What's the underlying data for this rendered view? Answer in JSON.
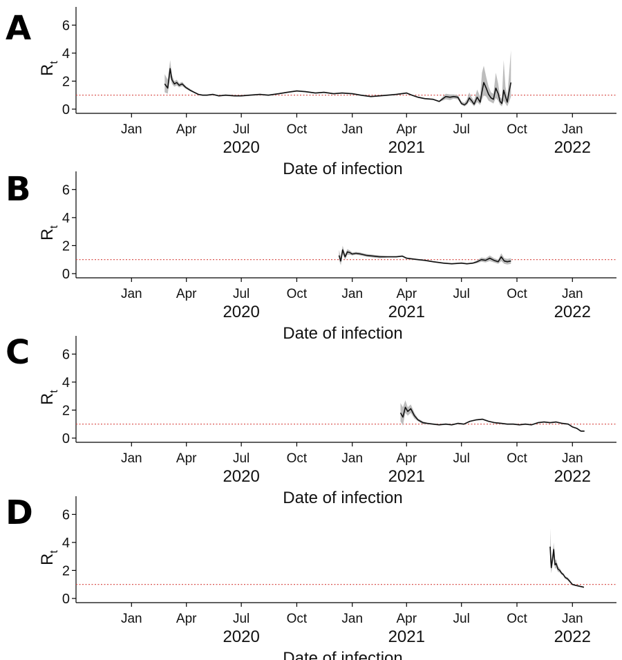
{
  "figure": {
    "x_axis": {
      "title": "Date of infection",
      "months": [
        {
          "label": "Jan",
          "date": "2020-01-01"
        },
        {
          "label": "Apr",
          "date": "2020-04-01"
        },
        {
          "label": "Jul",
          "date": "2020-07-01"
        },
        {
          "label": "Oct",
          "date": "2020-10-01"
        },
        {
          "label": "Jan",
          "date": "2021-01-01"
        },
        {
          "label": "Apr",
          "date": "2021-04-01"
        },
        {
          "label": "Jul",
          "date": "2021-07-01"
        },
        {
          "label": "Oct",
          "date": "2021-10-01"
        },
        {
          "label": "Jan",
          "date": "2022-01-01"
        }
      ],
      "years": [
        {
          "label": "2020",
          "date": "2020-07-01"
        },
        {
          "label": "2021",
          "date": "2021-04-01"
        },
        {
          "label": "2022",
          "date": "2022-01-01"
        }
      ],
      "range": [
        "2019-10-01",
        "2022-03-15"
      ]
    },
    "y_axis": {
      "title_main": "R",
      "title_sub": "t",
      "ticks": [
        0,
        2,
        4,
        6
      ],
      "range": [
        -0.3,
        7.3
      ]
    },
    "reference_line": {
      "value": 1,
      "color": "#d9534f"
    },
    "line_color": "#111111",
    "band_color": "#bdbdbd"
  },
  "chart_data": [
    {
      "type": "line",
      "panel": "A",
      "xlabel": "Date of infection",
      "ylabel": "Rt",
      "ylim": [
        0,
        7
      ],
      "reference_y": 1,
      "series": [
        {
          "x": [
            "2020-02-25",
            "2020-03-01",
            "2020-03-05",
            "2020-03-08",
            "2020-03-12",
            "2020-03-16",
            "2020-03-20",
            "2020-03-25",
            "2020-03-31",
            "2020-04-07",
            "2020-04-14",
            "2020-04-21",
            "2020-04-28",
            "2020-05-05",
            "2020-05-15",
            "2020-05-25",
            "2020-06-05",
            "2020-06-20",
            "2020-07-01",
            "2020-07-15",
            "2020-08-01",
            "2020-08-15",
            "2020-09-01",
            "2020-09-15",
            "2020-10-01",
            "2020-10-15",
            "2020-11-01",
            "2020-11-15",
            "2020-12-01",
            "2020-12-15",
            "2021-01-01",
            "2021-01-15",
            "2021-02-01",
            "2021-02-15",
            "2021-03-01",
            "2021-03-15",
            "2021-04-01",
            "2021-04-10",
            "2021-04-20",
            "2021-05-01",
            "2021-05-15",
            "2021-05-25",
            "2021-06-05",
            "2021-06-12",
            "2021-06-18",
            "2021-06-25",
            "2021-07-01",
            "2021-07-06",
            "2021-07-10",
            "2021-07-14",
            "2021-07-18",
            "2021-07-22",
            "2021-07-27",
            "2021-08-01",
            "2021-08-04",
            "2021-08-07",
            "2021-08-11",
            "2021-08-15",
            "2021-08-19",
            "2021-08-23",
            "2021-08-27",
            "2021-08-31",
            "2021-09-03",
            "2021-09-06",
            "2021-09-09",
            "2021-09-12",
            "2021-09-15",
            "2021-09-18",
            "2021-09-21"
          ],
          "y": [
            1.8,
            1.5,
            2.9,
            2.1,
            1.8,
            1.9,
            1.7,
            1.8,
            1.55,
            1.35,
            1.2,
            1.05,
            1.0,
            1.0,
            1.05,
            0.95,
            1.0,
            0.95,
            0.95,
            1.0,
            1.05,
            1.0,
            1.1,
            1.2,
            1.3,
            1.25,
            1.15,
            1.2,
            1.1,
            1.15,
            1.1,
            1.0,
            0.9,
            0.95,
            1.0,
            1.05,
            1.15,
            1.0,
            0.85,
            0.75,
            0.7,
            0.55,
            0.9,
            0.85,
            0.9,
            0.85,
            0.4,
            0.3,
            0.45,
            0.8,
            0.6,
            0.35,
            0.85,
            0.5,
            1.25,
            1.9,
            1.5,
            1.05,
            0.8,
            0.7,
            1.5,
            1.1,
            0.55,
            0.4,
            1.35,
            0.9,
            0.5,
            1.25,
            1.9
          ],
          "lower": [
            1.2,
            1.1,
            2.3,
            1.8,
            1.6,
            1.7,
            1.55,
            1.65,
            1.45,
            1.3,
            1.15,
            1.0,
            0.95,
            0.95,
            1.0,
            0.9,
            0.95,
            0.9,
            0.9,
            0.95,
            1.0,
            0.95,
            1.05,
            1.15,
            1.25,
            1.2,
            1.1,
            1.15,
            1.05,
            1.1,
            1.05,
            0.95,
            0.85,
            0.9,
            0.95,
            1.0,
            1.1,
            0.95,
            0.8,
            0.7,
            0.65,
            0.5,
            0.7,
            0.65,
            0.75,
            0.7,
            0.3,
            0.2,
            0.3,
            0.55,
            0.4,
            0.2,
            0.5,
            0.3,
            0.7,
            1.0,
            0.9,
            0.6,
            0.5,
            0.4,
            0.8,
            0.6,
            0.3,
            0.2,
            0.6,
            0.4,
            0.2,
            0.5,
            0.9
          ],
          "upper": [
            2.5,
            2.1,
            3.5,
            2.4,
            2.0,
            2.1,
            1.85,
            1.95,
            1.65,
            1.45,
            1.25,
            1.1,
            1.05,
            1.05,
            1.1,
            1.0,
            1.05,
            1.0,
            1.0,
            1.05,
            1.1,
            1.05,
            1.15,
            1.25,
            1.35,
            1.3,
            1.2,
            1.25,
            1.15,
            1.2,
            1.15,
            1.05,
            0.95,
            1.0,
            1.05,
            1.1,
            1.2,
            1.05,
            0.9,
            0.8,
            0.75,
            0.6,
            1.1,
            1.05,
            1.05,
            1.0,
            0.55,
            0.45,
            0.7,
            1.2,
            0.85,
            0.6,
            1.4,
            0.9,
            2.6,
            3.1,
            2.3,
            1.6,
            1.2,
            1.1,
            2.6,
            1.8,
            0.9,
            0.7,
            3.5,
            1.6,
            0.9,
            2.5,
            4.2
          ]
        }
      ]
    },
    {
      "type": "line",
      "panel": "B",
      "xlabel": "Date of infection",
      "ylabel": "Rt",
      "ylim": [
        0,
        7
      ],
      "reference_y": 1,
      "series": [
        {
          "x": [
            "2020-12-10",
            "2020-12-13",
            "2020-12-16",
            "2020-12-20",
            "2020-12-24",
            "2020-12-28",
            "2021-01-01",
            "2021-01-07",
            "2021-01-15",
            "2021-01-25",
            "2021-02-05",
            "2021-02-15",
            "2021-03-01",
            "2021-03-15",
            "2021-03-25",
            "2021-04-01",
            "2021-04-10",
            "2021-04-20",
            "2021-05-01",
            "2021-05-15",
            "2021-06-01",
            "2021-06-15",
            "2021-07-01",
            "2021-07-10",
            "2021-07-20",
            "2021-07-27",
            "2021-08-03",
            "2021-08-10",
            "2021-08-17",
            "2021-08-24",
            "2021-08-31",
            "2021-09-05",
            "2021-09-10",
            "2021-09-15",
            "2021-09-21"
          ],
          "y": [
            1.3,
            0.9,
            1.7,
            1.2,
            1.55,
            1.5,
            1.4,
            1.45,
            1.4,
            1.3,
            1.25,
            1.2,
            1.2,
            1.2,
            1.25,
            1.1,
            1.05,
            1.0,
            0.95,
            0.85,
            0.75,
            0.7,
            0.75,
            0.7,
            0.75,
            0.85,
            1.0,
            0.95,
            1.1,
            0.95,
            0.85,
            1.2,
            0.9,
            0.85,
            0.9
          ],
          "lower": [
            1.0,
            0.6,
            1.4,
            1.0,
            1.35,
            1.35,
            1.3,
            1.35,
            1.3,
            1.2,
            1.15,
            1.1,
            1.15,
            1.15,
            1.2,
            1.05,
            1.0,
            0.95,
            0.9,
            0.8,
            0.7,
            0.65,
            0.7,
            0.65,
            0.7,
            0.75,
            0.85,
            0.8,
            0.9,
            0.8,
            0.7,
            0.9,
            0.7,
            0.65,
            0.7
          ],
          "upper": [
            1.7,
            1.2,
            2.0,
            1.4,
            1.75,
            1.65,
            1.5,
            1.55,
            1.5,
            1.4,
            1.35,
            1.3,
            1.25,
            1.25,
            1.3,
            1.15,
            1.1,
            1.05,
            1.0,
            0.9,
            0.8,
            0.75,
            0.8,
            0.75,
            0.8,
            0.95,
            1.15,
            1.1,
            1.3,
            1.1,
            1.0,
            1.45,
            1.1,
            1.05,
            1.1
          ]
        }
      ]
    },
    {
      "type": "line",
      "panel": "C",
      "xlabel": "Date of infection",
      "ylabel": "Rt",
      "ylim": [
        0,
        7
      ],
      "reference_y": 1,
      "series": [
        {
          "x": [
            "2021-03-22",
            "2021-03-26",
            "2021-03-30",
            "2021-04-03",
            "2021-04-08",
            "2021-04-14",
            "2021-04-20",
            "2021-04-28",
            "2021-05-05",
            "2021-05-15",
            "2021-05-25",
            "2021-06-05",
            "2021-06-15",
            "2021-06-25",
            "2021-07-05",
            "2021-07-15",
            "2021-07-25",
            "2021-08-05",
            "2021-08-15",
            "2021-08-25",
            "2021-09-05",
            "2021-09-15",
            "2021-09-25",
            "2021-10-05",
            "2021-10-15",
            "2021-10-25",
            "2021-11-05",
            "2021-11-15",
            "2021-11-25",
            "2021-12-05",
            "2021-12-15",
            "2021-12-25",
            "2022-01-01",
            "2022-01-08",
            "2022-01-15",
            "2022-01-21"
          ],
          "y": [
            1.8,
            1.5,
            2.2,
            1.9,
            2.1,
            1.6,
            1.3,
            1.1,
            1.05,
            1.0,
            0.95,
            1.0,
            0.95,
            1.05,
            1.0,
            1.2,
            1.3,
            1.35,
            1.2,
            1.1,
            1.05,
            1.0,
            1.0,
            0.95,
            1.0,
            0.95,
            1.1,
            1.15,
            1.1,
            1.15,
            1.05,
            1.0,
            0.8,
            0.7,
            0.5,
            0.5
          ],
          "lower": [
            1.2,
            0.9,
            1.8,
            1.6,
            1.8,
            1.4,
            1.2,
            1.0,
            1.0,
            0.95,
            0.9,
            0.95,
            0.9,
            1.0,
            0.95,
            1.15,
            1.25,
            1.3,
            1.15,
            1.05,
            1.0,
            0.95,
            0.95,
            0.9,
            0.95,
            0.9,
            1.05,
            1.1,
            1.05,
            1.1,
            1.0,
            0.95,
            0.75,
            0.65,
            0.45,
            0.45
          ],
          "upper": [
            2.5,
            2.2,
            2.7,
            2.2,
            2.4,
            1.8,
            1.4,
            1.2,
            1.1,
            1.05,
            1.0,
            1.05,
            1.0,
            1.1,
            1.05,
            1.25,
            1.35,
            1.4,
            1.25,
            1.15,
            1.1,
            1.05,
            1.05,
            1.0,
            1.05,
            1.0,
            1.15,
            1.2,
            1.15,
            1.2,
            1.1,
            1.05,
            0.85,
            0.75,
            0.55,
            0.55
          ]
        }
      ]
    },
    {
      "type": "line",
      "panel": "D",
      "xlabel": "Date of infection",
      "ylabel": "Rt",
      "ylim": [
        0,
        7
      ],
      "reference_y": 1,
      "series": [
        {
          "x": [
            "2021-11-25",
            "2021-11-27",
            "2021-11-29",
            "2021-12-01",
            "2021-12-03",
            "2021-12-05",
            "2021-12-08",
            "2021-12-11",
            "2021-12-14",
            "2021-12-17",
            "2021-12-20",
            "2021-12-24",
            "2021-12-28",
            "2022-01-01",
            "2022-01-05",
            "2022-01-10",
            "2022-01-15",
            "2022-01-20"
          ],
          "y": [
            3.7,
            2.2,
            2.8,
            3.5,
            2.4,
            2.5,
            2.1,
            2.0,
            1.8,
            1.7,
            1.5,
            1.4,
            1.2,
            1.0,
            0.95,
            0.9,
            0.85,
            0.8
          ],
          "lower": [
            2.6,
            1.8,
            2.4,
            3.0,
            2.1,
            2.2,
            1.9,
            1.85,
            1.7,
            1.6,
            1.4,
            1.3,
            1.1,
            0.95,
            0.9,
            0.85,
            0.8,
            0.75
          ],
          "upper": [
            5.0,
            2.7,
            3.2,
            4.0,
            2.7,
            2.8,
            2.3,
            2.15,
            1.9,
            1.8,
            1.6,
            1.5,
            1.3,
            1.05,
            1.0,
            0.95,
            0.9,
            0.85
          ]
        }
      ]
    }
  ]
}
